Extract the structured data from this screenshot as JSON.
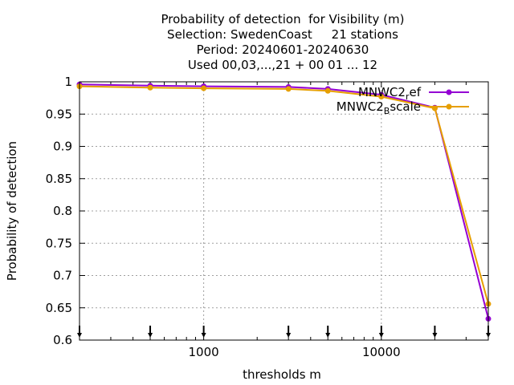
{
  "chart_data": {
    "type": "line",
    "title_lines": [
      "Probability of detection  for Visibility (m)",
      "Selection: SwedenCoast     21 stations",
      "Period: 20240601-20240630",
      "Used 00,03,...,21 + 00 01 ... 12"
    ],
    "xlabel": "thresholds m",
    "ylabel": "Probability of detection",
    "x_scale": "log",
    "xlim": [
      200,
      40000
    ],
    "ylim": [
      0.6,
      1.0
    ],
    "x_ticks": [
      {
        "value": 1000,
        "label": "1000"
      },
      {
        "value": 10000,
        "label": "10000"
      }
    ],
    "y_ticks": [
      {
        "value": 0.6,
        "label": "0.6"
      },
      {
        "value": 0.65,
        "label": "0.65"
      },
      {
        "value": 0.7,
        "label": "0.7"
      },
      {
        "value": 0.75,
        "label": "0.75"
      },
      {
        "value": 0.8,
        "label": "0.8"
      },
      {
        "value": 0.85,
        "label": "0.85"
      },
      {
        "value": 0.9,
        "label": "0.9"
      },
      {
        "value": 0.95,
        "label": "0.95"
      },
      {
        "value": 1.0,
        "label": "1"
      }
    ],
    "grid": true,
    "legend_position": "top-right",
    "x": [
      200,
      500,
      1000,
      3000,
      5000,
      10000,
      20000,
      40000
    ],
    "series": [
      {
        "name_main": "MNWC2",
        "name_sub": "r",
        "name_tail": "ef",
        "color": "#9400d3",
        "values": [
          0.996,
          0.994,
          0.993,
          0.992,
          0.989,
          0.98,
          0.96,
          0.633
        ]
      },
      {
        "name_main": "MNWC2",
        "name_sub": "B",
        "name_tail": "scale",
        "color": "#e69f00",
        "values": [
          0.993,
          0.991,
          0.99,
          0.989,
          0.986,
          0.977,
          0.959,
          0.656
        ]
      }
    ],
    "count_markers_x": [
      200,
      500,
      1000,
      3000,
      5000,
      10000,
      20000,
      40000
    ]
  }
}
